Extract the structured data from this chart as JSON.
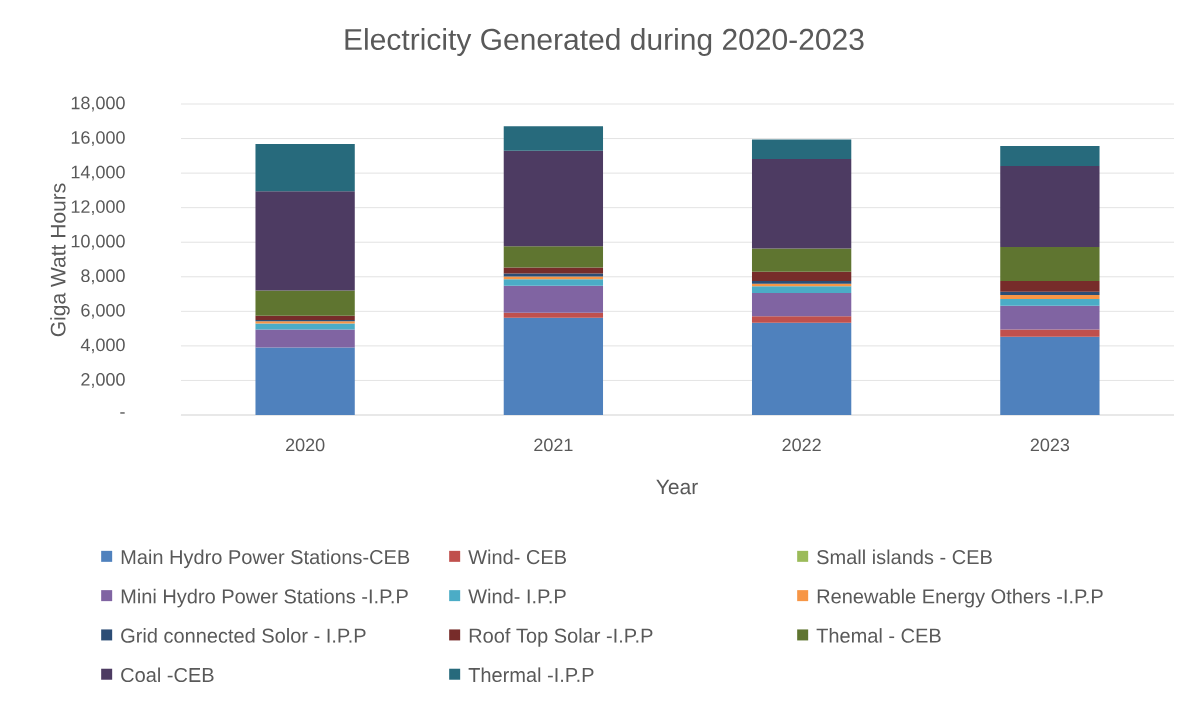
{
  "chart_data": {
    "type": "bar",
    "stacked": true,
    "title": "Electricity Generated during 2020-2023",
    "xlabel": "Year",
    "ylabel": "Giga Watt Hours",
    "categories": [
      "2020",
      "2021",
      "2022",
      "2023"
    ],
    "ylim": [
      0,
      18000
    ],
    "yticks": [
      {
        "value": 0,
        "label": "-"
      },
      {
        "value": 2000,
        "label": "2,000"
      },
      {
        "value": 4000,
        "label": "4,000"
      },
      {
        "value": 6000,
        "label": "6,000"
      },
      {
        "value": 8000,
        "label": "8,000"
      },
      {
        "value": 10000,
        "label": "10,000"
      },
      {
        "value": 12000,
        "label": "12,000"
      },
      {
        "value": 14000,
        "label": "14,000"
      },
      {
        "value": 16000,
        "label": "16,000"
      },
      {
        "value": 18000,
        "label": "18,000"
      }
    ],
    "grid": "y",
    "legend": "bottom",
    "series": [
      {
        "name": "Main Hydro Power Stations-CEB",
        "color": "#4f81bd",
        "values": [
          3910,
          5630,
          5340,
          4530
        ]
      },
      {
        "name": "Wind- CEB",
        "color": "#c0504d",
        "values": [
          0,
          290,
          370,
          420
        ]
      },
      {
        "name": "Small islands - CEB",
        "color": "#9bbb59",
        "values": [
          0,
          0,
          0,
          0
        ]
      },
      {
        "name": "Mini Hydro Power Stations -I.P.P",
        "color": "#8064a2",
        "values": [
          1040,
          1560,
          1350,
          1370
        ]
      },
      {
        "name": "Wind- I.P.P",
        "color": "#4bacc6",
        "values": [
          350,
          370,
          390,
          400
        ]
      },
      {
        "name": "Renewable Energy Others -I.P.P",
        "color": "#f79646",
        "values": [
          120,
          170,
          150,
          230
        ]
      },
      {
        "name": "Grid connected Solor - I.P.P",
        "color": "#2c4d75",
        "values": [
          80,
          170,
          150,
          190
        ]
      },
      {
        "name": "Roof Top Solar -I.P.P",
        "color": "#772c2a",
        "values": [
          250,
          350,
          540,
          620
        ]
      },
      {
        "name": "Themal - CEB",
        "color": "#5f7530",
        "values": [
          1460,
          1230,
          1350,
          1970
        ]
      },
      {
        "name": "Coal -CEB",
        "color": "#4d3b62",
        "values": [
          5740,
          5530,
          5180,
          4680
        ]
      },
      {
        "name": "Thermal -I.P.P",
        "color": "#276a7c",
        "values": [
          2740,
          1410,
          1120,
          1160
        ]
      }
    ]
  }
}
